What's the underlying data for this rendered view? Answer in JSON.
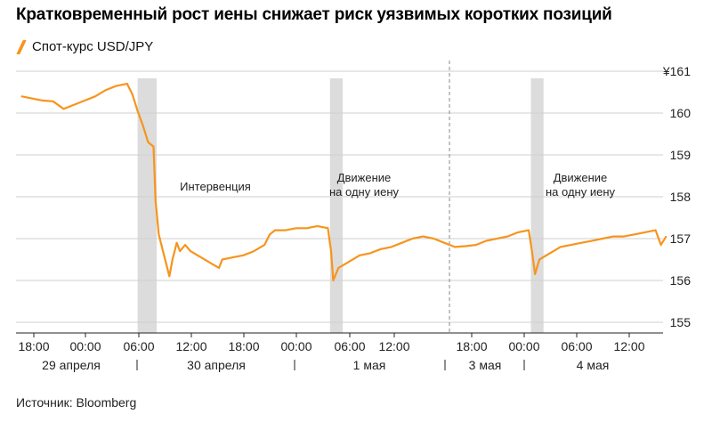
{
  "title": "Кратковременный рост иены снижает риск уязвимых коротких позиций",
  "source": "Источник: Bloomberg",
  "colors": {
    "line": "#f7941d",
    "shade": "#dcdcdc",
    "grid": "#cfcfcf",
    "axis": "#222222"
  },
  "chart_data": {
    "type": "line",
    "series": [
      {
        "name": "Спот-курс USD/JPY",
        "points": [
          [
            0,
            160.4
          ],
          [
            1,
            160.35
          ],
          [
            2,
            160.3
          ],
          [
            3,
            160.28
          ],
          [
            4,
            160.1
          ],
          [
            5,
            160.2
          ],
          [
            6,
            160.3
          ],
          [
            7,
            160.4
          ],
          [
            8,
            160.55
          ],
          [
            9,
            160.65
          ],
          [
            10,
            160.7
          ],
          [
            10.5,
            160.45
          ],
          [
            11,
            160.05
          ],
          [
            11.5,
            159.7
          ],
          [
            12,
            159.3
          ],
          [
            12.5,
            159.2
          ],
          [
            12.7,
            157.9
          ],
          [
            13,
            157.1
          ],
          [
            13.5,
            156.6
          ],
          [
            14,
            156.1
          ],
          [
            14.3,
            156.5
          ],
          [
            14.7,
            156.9
          ],
          [
            15,
            156.7
          ],
          [
            15.5,
            156.85
          ],
          [
            16,
            156.7
          ],
          [
            17,
            156.55
          ],
          [
            18,
            156.4
          ],
          [
            18.7,
            156.3
          ],
          [
            19,
            156.5
          ],
          [
            20,
            156.55
          ],
          [
            21,
            156.6
          ],
          [
            22,
            156.7
          ],
          [
            23,
            156.85
          ],
          [
            23.5,
            157.1
          ],
          [
            24,
            157.2
          ],
          [
            25,
            157.2
          ],
          [
            26,
            157.25
          ],
          [
            27,
            157.25
          ],
          [
            28,
            157.3
          ],
          [
            29,
            157.25
          ],
          [
            29.3,
            156.7
          ],
          [
            29.5,
            156.0
          ],
          [
            30,
            156.3
          ],
          [
            31,
            156.45
          ],
          [
            32,
            156.6
          ],
          [
            33,
            156.65
          ],
          [
            34,
            156.75
          ],
          [
            35,
            156.8
          ],
          [
            36,
            156.9
          ],
          [
            37,
            157.0
          ],
          [
            38,
            157.05
          ],
          [
            39,
            157.0
          ],
          [
            40,
            156.9
          ],
          [
            41,
            156.8
          ],
          [
            42,
            156.82
          ],
          [
            43,
            156.85
          ],
          [
            44,
            156.95
          ],
          [
            45,
            157.0
          ],
          [
            46,
            157.05
          ],
          [
            47,
            157.15
          ],
          [
            48,
            157.2
          ],
          [
            48.3,
            156.7
          ],
          [
            48.6,
            156.15
          ],
          [
            49,
            156.5
          ],
          [
            50,
            156.65
          ],
          [
            51,
            156.8
          ],
          [
            52,
            156.85
          ],
          [
            53,
            156.9
          ],
          [
            54,
            156.95
          ],
          [
            55,
            157.0
          ],
          [
            56,
            157.05
          ],
          [
            57,
            157.05
          ],
          [
            58,
            157.1
          ],
          [
            59,
            157.15
          ],
          [
            60,
            157.2
          ],
          [
            60.5,
            156.85
          ],
          [
            61,
            157.05
          ]
        ]
      }
    ],
    "x_note": "x values are hours elapsed on the trading time axis starting at 18:00 on 29 April (gaps for non-trading days removed).",
    "ylim": [
      155,
      161
    ],
    "y_ticks": [
      {
        "value": 161,
        "label": "¥161"
      },
      {
        "value": 160,
        "label": "160"
      },
      {
        "value": 159,
        "label": "159"
      },
      {
        "value": 158,
        "label": "158"
      },
      {
        "value": 157,
        "label": "157"
      },
      {
        "value": 156,
        "label": "156"
      },
      {
        "value": 155,
        "label": "155"
      }
    ],
    "x_ticks": [
      {
        "value": 0,
        "label": "18:00"
      },
      {
        "value": 6,
        "label": "00:00"
      },
      {
        "value": 12,
        "label": "06:00"
      },
      {
        "value": 18,
        "label": "12:00"
      },
      {
        "value": 24,
        "label": "18:00"
      },
      {
        "value": 30,
        "label": "00:00"
      },
      {
        "value": 36,
        "label": "06:00"
      },
      {
        "value": 42,
        "label": "12:00"
      },
      {
        "value": 48,
        "label": "18:00"
      },
      {
        "value": 54,
        "label": "00:00"
      },
      {
        "value": 60,
        "label": "06:00"
      },
      {
        "value": 66,
        "label": "12:00"
      }
    ],
    "x_range": [
      0,
      72
    ],
    "day_labels": [
      "29 апреля",
      "30 апреля",
      "1 мая",
      "3 мая",
      "4 мая"
    ],
    "shaded_ranges": [
      [
        11,
        12.8
      ],
      [
        29.2,
        30.4
      ],
      [
        48.2,
        49.4
      ]
    ],
    "break_at": 40.5,
    "annotations": [
      "Интервенция",
      "Движение на одну иену",
      "Движение на одну иену"
    ],
    "grid": true,
    "legend": "top-left"
  }
}
